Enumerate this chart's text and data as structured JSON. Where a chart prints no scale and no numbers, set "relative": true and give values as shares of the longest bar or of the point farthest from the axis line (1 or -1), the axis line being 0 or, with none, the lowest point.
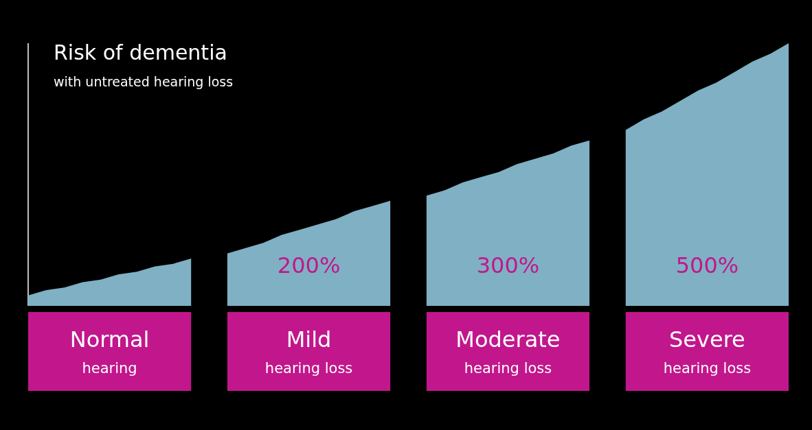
{
  "chart_data": {
    "type": "area",
    "relative": true,
    "title": "Risk of dementia",
    "subtitle": "with  untreated  hearing loss",
    "categories": [
      null,
      null,
      null,
      null,
      null,
      null,
      null,
      null,
      null,
      null,
      null,
      null,
      null,
      null,
      null,
      null,
      null,
      null,
      null,
      null,
      null,
      null,
      null,
      null,
      null,
      null,
      null,
      null,
      null,
      null,
      null,
      null,
      null,
      null,
      null,
      null,
      null,
      null,
      null,
      null,
      null,
      null,
      null
    ],
    "series": [
      {
        "color": "#7fb0c4",
        "values": [
          0.04,
          0.06,
          0.07,
          0.09,
          0.1,
          0.12,
          0.13,
          0.15,
          0.16,
          0.18,
          null,
          null,
          null,
          null,
          null,
          null,
          null,
          null,
          null,
          null,
          null,
          null,
          null,
          null,
          null,
          null,
          null,
          null,
          null,
          null,
          null,
          null,
          null,
          null,
          null,
          null,
          null,
          null,
          null,
          null,
          null,
          null,
          null
        ]
      },
      {
        "color": "#7fb0c4",
        "values": [
          null,
          null,
          null,
          null,
          null,
          null,
          null,
          null,
          null,
          null,
          null,
          0.2,
          0.22,
          0.24,
          0.27,
          0.29,
          0.31,
          0.33,
          0.36,
          0.38,
          0.4,
          null,
          null,
          null,
          null,
          null,
          null,
          null,
          null,
          null,
          null,
          null,
          null,
          null,
          null,
          null,
          null,
          null,
          null,
          null,
          null,
          null,
          null
        ]
      },
      {
        "color": "#7fb0c4",
        "values": [
          null,
          null,
          null,
          null,
          null,
          null,
          null,
          null,
          null,
          null,
          null,
          null,
          null,
          null,
          null,
          null,
          null,
          null,
          null,
          null,
          null,
          null,
          0.42,
          0.44,
          0.47,
          0.49,
          0.51,
          0.54,
          0.56,
          0.58,
          0.61,
          0.63,
          null,
          null,
          null,
          null,
          null,
          null,
          null,
          null,
          null,
          null,
          null
        ]
      },
      {
        "color": "#7fb0c4",
        "values": [
          null,
          null,
          null,
          null,
          null,
          null,
          null,
          null,
          null,
          null,
          null,
          null,
          null,
          null,
          null,
          null,
          null,
          null,
          null,
          null,
          null,
          null,
          null,
          null,
          null,
          null,
          null,
          null,
          null,
          null,
          null,
          null,
          null,
          0.67,
          0.71,
          0.74,
          0.78,
          0.82,
          0.85,
          0.89,
          0.93,
          0.96,
          1.0
        ]
      }
    ],
    "annotations": [
      "Normal\nhearing",
      "Mild\nhearing loss",
      "Moderate\nhearing loss",
      "Severe\nhearing loss",
      "200%",
      "300%",
      "500%"
    ]
  }
}
